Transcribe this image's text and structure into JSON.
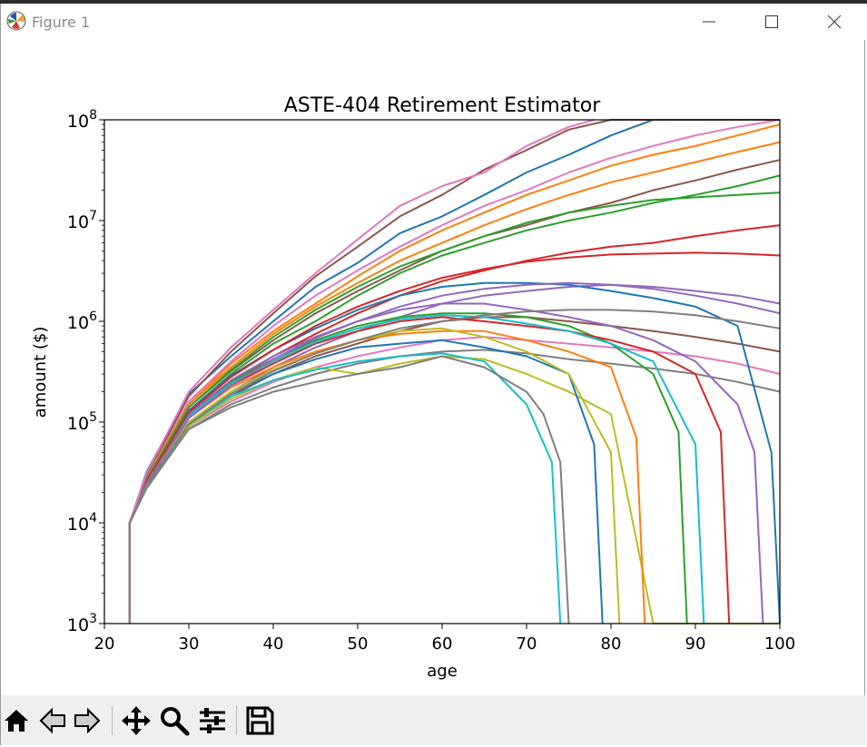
{
  "window": {
    "title": "Figure 1"
  },
  "toolbar": {
    "buttons": [
      {
        "name": "home",
        "icon": "home-icon"
      },
      {
        "name": "back",
        "icon": "back-arrow-icon"
      },
      {
        "name": "forward",
        "icon": "forward-arrow-icon"
      },
      {
        "name": "pan",
        "icon": "move-arrows-icon"
      },
      {
        "name": "zoom",
        "icon": "magnifier-icon"
      },
      {
        "name": "configure",
        "icon": "sliders-icon"
      },
      {
        "name": "save",
        "icon": "floppy-disk-icon"
      }
    ]
  },
  "chart_data": {
    "type": "line",
    "title": "ASTE-404 Retirement Estimator",
    "xlabel": "age",
    "ylabel": "amount ($)",
    "xlim": [
      20,
      100
    ],
    "ylim": [
      1000,
      100000000
    ],
    "yscale": "log",
    "xticks": [
      "20",
      "30",
      "40",
      "50",
      "60",
      "70",
      "80",
      "90",
      "100"
    ],
    "yticks": [
      {
        "base": "10",
        "exp": "3"
      },
      {
        "base": "10",
        "exp": "4"
      },
      {
        "base": "10",
        "exp": "5"
      },
      {
        "base": "10",
        "exp": "6"
      },
      {
        "base": "10",
        "exp": "7"
      },
      {
        "base": "10",
        "exp": "8"
      }
    ],
    "grid": false,
    "legend": "none",
    "palette": [
      "#1f77b4",
      "#ff7f0e",
      "#2ca02c",
      "#d62728",
      "#9467bd",
      "#8c564b",
      "#e377c2",
      "#7f7f7f",
      "#bcbd22",
      "#17becf"
    ],
    "series_summary": {
      "count": "many (Monte Carlo trajectories)",
      "start_age": 23,
      "start_amount": 10000,
      "note": "upper envelope: 1e5 at 30, 1e6 at 43, 1e7 at 57, 1e8 at 80; lower envelope: 1e5 at 30, 3e5 at 50, 4e5 at 62; depleted trajectories drop to zero between ages 73 and 99"
    },
    "series": [
      {
        "x": [
          23,
          25,
          30,
          35,
          40,
          45,
          50,
          55,
          60,
          65,
          70,
          75,
          80,
          85,
          90,
          95,
          100
        ],
        "values": [
          10000,
          32000,
          190000,
          450000,
          1000000,
          2200000,
          3800000,
          7500000,
          11000000,
          18000000,
          30000000,
          45000000,
          70000000,
          100000000,
          100000000,
          100000000,
          100000000
        ]
      },
      {
        "x": [
          23,
          25,
          30,
          35,
          40,
          45,
          50,
          55,
          60,
          65,
          70,
          75,
          80,
          85,
          90,
          95,
          100
        ],
        "values": [
          10000,
          30000,
          150000,
          380000,
          800000,
          1500000,
          2800000,
          5000000,
          8000000,
          12000000,
          18000000,
          25000000,
          35000000,
          45000000,
          55000000,
          70000000,
          90000000
        ]
      },
      {
        "x": [
          23,
          25,
          30,
          35,
          40,
          45,
          50,
          55,
          60,
          65,
          70,
          75,
          80,
          85,
          90,
          95,
          100
        ],
        "values": [
          10000,
          28000,
          130000,
          300000,
          600000,
          1000000,
          1800000,
          3000000,
          4500000,
          6000000,
          8000000,
          10000000,
          12000000,
          15000000,
          18000000,
          22000000,
          28000000
        ]
      },
      {
        "x": [
          23,
          25,
          30,
          35,
          40,
          45,
          50,
          55,
          60,
          65,
          70,
          75,
          80,
          85,
          90,
          95,
          100
        ],
        "values": [
          10000,
          26000,
          110000,
          250000,
          450000,
          750000,
          1200000,
          1800000,
          2500000,
          3200000,
          4000000,
          4800000,
          5500000,
          6000000,
          7000000,
          8000000,
          9000000
        ]
      },
      {
        "x": [
          23,
          25,
          30,
          35,
          40,
          45,
          50,
          55,
          60,
          65,
          70,
          75,
          80,
          85,
          90,
          95,
          100
        ],
        "values": [
          10000,
          25000,
          100000,
          200000,
          350000,
          550000,
          800000,
          1100000,
          1500000,
          1800000,
          2000000,
          2200000,
          2300000,
          2200000,
          2000000,
          1800000,
          1500000
        ]
      },
      {
        "x": [
          23,
          25,
          30,
          35,
          40,
          45,
          50,
          55,
          60,
          65,
          70,
          75,
          80,
          85,
          90,
          95,
          100
        ],
        "values": [
          10000,
          24000,
          95000,
          180000,
          300000,
          450000,
          600000,
          800000,
          1000000,
          1100000,
          1100000,
          1000000,
          900000,
          800000,
          700000,
          600000,
          500000
        ]
      },
      {
        "x": [
          23,
          25,
          30,
          35,
          40,
          45,
          50,
          55,
          60,
          65,
          70,
          75,
          80,
          85,
          90,
          95,
          100
        ],
        "values": [
          10000,
          23000,
          90000,
          160000,
          250000,
          350000,
          450000,
          550000,
          650000,
          700000,
          650000,
          600000,
          550000,
          500000,
          450000,
          380000,
          300000
        ]
      },
      {
        "x": [
          23,
          25,
          30,
          35,
          40,
          45,
          50,
          55,
          60,
          65,
          70,
          75,
          80,
          85,
          90,
          95,
          100
        ],
        "values": [
          10000,
          22000,
          85000,
          150000,
          220000,
          300000,
          380000,
          450000,
          500000,
          520000,
          480000,
          420000,
          380000,
          340000,
          300000,
          250000,
          200000
        ]
      },
      {
        "x": [
          23,
          25,
          30,
          35,
          40,
          45,
          50,
          55,
          60,
          65,
          70,
          75,
          80,
          85,
          90,
          95,
          100
        ],
        "values": [
          10000,
          23000,
          90000,
          170000,
          260000,
          350000,
          300000,
          380000,
          450000,
          420000,
          300000,
          200000,
          120000,
          1000,
          1000,
          1000,
          1000
        ]
      },
      {
        "x": [
          23,
          25,
          30,
          35,
          40,
          45,
          50,
          55,
          60,
          65,
          70,
          73,
          74
        ],
        "values": [
          10000,
          23000,
          95000,
          180000,
          260000,
          330000,
          400000,
          450000,
          480000,
          400000,
          150000,
          40000,
          1000
        ]
      },
      {
        "x": [
          23,
          25,
          30,
          35,
          40,
          45,
          50,
          55,
          60,
          65,
          70,
          75,
          78,
          79
        ],
        "values": [
          10000,
          24000,
          100000,
          190000,
          300000,
          420000,
          550000,
          600000,
          650000,
          550000,
          450000,
          300000,
          60000,
          1000
        ]
      },
      {
        "x": [
          23,
          25,
          30,
          35,
          40,
          45,
          50,
          55,
          60,
          65,
          70,
          75,
          80,
          83,
          84
        ],
        "values": [
          10000,
          25000,
          110000,
          220000,
          350000,
          500000,
          650000,
          750000,
          800000,
          800000,
          650000,
          500000,
          350000,
          70000,
          1000
        ]
      },
      {
        "x": [
          23,
          25,
          30,
          35,
          40,
          45,
          50,
          55,
          60,
          65,
          70,
          75,
          80,
          85,
          88,
          89
        ],
        "values": [
          10000,
          26000,
          120000,
          250000,
          420000,
          650000,
          900000,
          1100000,
          1200000,
          1200000,
          1100000,
          900000,
          600000,
          300000,
          80000,
          1000
        ]
      },
      {
        "x": [
          23,
          25,
          30,
          35,
          40,
          45,
          50,
          55,
          60,
          65,
          70,
          75,
          80,
          85,
          90,
          93,
          94
        ],
        "values": [
          10000,
          25000,
          110000,
          230000,
          380000,
          600000,
          800000,
          1000000,
          1100000,
          1000000,
          900000,
          800000,
          650000,
          500000,
          300000,
          80000,
          1000
        ]
      },
      {
        "x": [
          23,
          25,
          30,
          35,
          40,
          45,
          50,
          55,
          60,
          65,
          70,
          75,
          80,
          85,
          90,
          95,
          97,
          98
        ],
        "values": [
          10000,
          26000,
          120000,
          260000,
          450000,
          700000,
          1000000,
          1300000,
          1500000,
          1500000,
          1300000,
          1100000,
          900000,
          650000,
          400000,
          150000,
          50000,
          1000
        ]
      },
      {
        "x": [
          23,
          25,
          30,
          35,
          40,
          45,
          50,
          55,
          60,
          65,
          70,
          75,
          80,
          85,
          90,
          95,
          100
        ],
        "values": [
          10000,
          27000,
          140000,
          320000,
          650000,
          1200000,
          2000000,
          3200000,
          5000000,
          7000000,
          9000000,
          12000000,
          15000000,
          20000000,
          25000000,
          32000000,
          40000000
        ]
      },
      {
        "x": [
          23,
          25,
          30,
          35,
          40,
          45,
          50,
          55,
          60,
          65,
          70,
          75,
          80,
          85,
          90,
          95,
          100
        ],
        "values": [
          10000,
          29000,
          160000,
          400000,
          900000,
          1800000,
          3200000,
          5500000,
          9000000,
          14000000,
          20000000,
          30000000,
          42000000,
          55000000,
          70000000,
          85000000,
          100000000
        ]
      },
      {
        "x": [
          23,
          25,
          30,
          35,
          40,
          45,
          50,
          55,
          60,
          65,
          70,
          72,
          74,
          75
        ],
        "values": [
          10000,
          23000,
          85000,
          140000,
          200000,
          250000,
          300000,
          350000,
          450000,
          350000,
          200000,
          120000,
          40000,
          1000
        ]
      },
      {
        "x": [
          23,
          25,
          30,
          35,
          40,
          45,
          50,
          55,
          60,
          65,
          70,
          75,
          80,
          81
        ],
        "values": [
          10000,
          24000,
          100000,
          200000,
          330000,
          480000,
          650000,
          800000,
          850000,
          700000,
          500000,
          300000,
          50000,
          1000
        ]
      },
      {
        "x": [
          23,
          25,
          30,
          35,
          40,
          45,
          50,
          55,
          60,
          65,
          70,
          75,
          80,
          85,
          90,
          91
        ],
        "values": [
          10000,
          25000,
          115000,
          240000,
          400000,
          620000,
          850000,
          1050000,
          1150000,
          1100000,
          950000,
          800000,
          600000,
          400000,
          60000,
          1000
        ]
      },
      {
        "x": [
          23,
          25,
          30,
          35,
          40,
          45,
          50,
          55,
          60,
          65,
          70,
          75,
          80,
          85,
          90,
          95,
          99,
          100
        ],
        "values": [
          10000,
          27000,
          130000,
          290000,
          520000,
          850000,
          1300000,
          1800000,
          2200000,
          2400000,
          2400000,
          2300000,
          2000000,
          1700000,
          1400000,
          900000,
          50000,
          1000
        ]
      },
      {
        "x": [
          23,
          25,
          30,
          35,
          40,
          45,
          50,
          55,
          60,
          65,
          70,
          75,
          80,
          85,
          90,
          95,
          100
        ],
        "values": [
          10000,
          28000,
          150000,
          350000,
          750000,
          1400000,
          2400000,
          4000000,
          6000000,
          9000000,
          13000000,
          18000000,
          24000000,
          30000000,
          38000000,
          48000000,
          60000000
        ]
      },
      {
        "x": [
          23,
          25,
          30,
          35,
          40,
          45,
          50,
          55,
          60,
          65,
          70,
          75,
          80,
          85,
          90,
          95,
          100
        ],
        "values": [
          10000,
          27000,
          140000,
          330000,
          700000,
          1300000,
          2200000,
          3500000,
          5000000,
          7000000,
          9500000,
          12000000,
          14000000,
          16000000,
          17000000,
          18000000,
          19000000
        ]
      },
      {
        "x": [
          23,
          25,
          30,
          35,
          40,
          45,
          50,
          55,
          60,
          65,
          70,
          75,
          80,
          85,
          90,
          95,
          100
        ],
        "values": [
          10000,
          26000,
          125000,
          280000,
          520000,
          900000,
          1400000,
          2000000,
          2700000,
          3300000,
          3900000,
          4300000,
          4600000,
          4700000,
          4800000,
          4700000,
          4500000
        ]
      },
      {
        "x": [
          23,
          25,
          30,
          35,
          40,
          45,
          50,
          55,
          60,
          65,
          70,
          75,
          80,
          85,
          90,
          95,
          100
        ],
        "values": [
          10000,
          25000,
          110000,
          230000,
          420000,
          680000,
          1000000,
          1400000,
          1800000,
          2100000,
          2300000,
          2400000,
          2300000,
          2100000,
          1800000,
          1500000,
          1200000
        ]
      },
      {
        "x": [
          23,
          25,
          30,
          35,
          40,
          45,
          50,
          55,
          60,
          65,
          70,
          75,
          80,
          85,
          90,
          95,
          100
        ],
        "values": [
          10000,
          30000,
          180000,
          500000,
          1200000,
          2800000,
          5500000,
          11000000,
          18000000,
          32000000,
          50000000,
          80000000,
          100000000,
          100000000,
          100000000,
          100000000,
          100000000
        ]
      },
      {
        "x": [
          23,
          25,
          30,
          35,
          40,
          45,
          50,
          55,
          60,
          65,
          70,
          75,
          78
        ],
        "values": [
          10000,
          31000,
          200000,
          550000,
          1300000,
          3000000,
          6500000,
          14000000,
          22000000,
          30000000,
          55000000,
          85000000,
          100000000
        ]
      },
      {
        "x": [
          23,
          25,
          30,
          35,
          40,
          45,
          50,
          55,
          60,
          65,
          70,
          75,
          80,
          85,
          90,
          95,
          100
        ],
        "values": [
          10000,
          24000,
          95000,
          190000,
          320000,
          480000,
          650000,
          850000,
          1000000,
          1150000,
          1250000,
          1300000,
          1300000,
          1250000,
          1150000,
          1000000,
          850000
        ]
      }
    ]
  }
}
